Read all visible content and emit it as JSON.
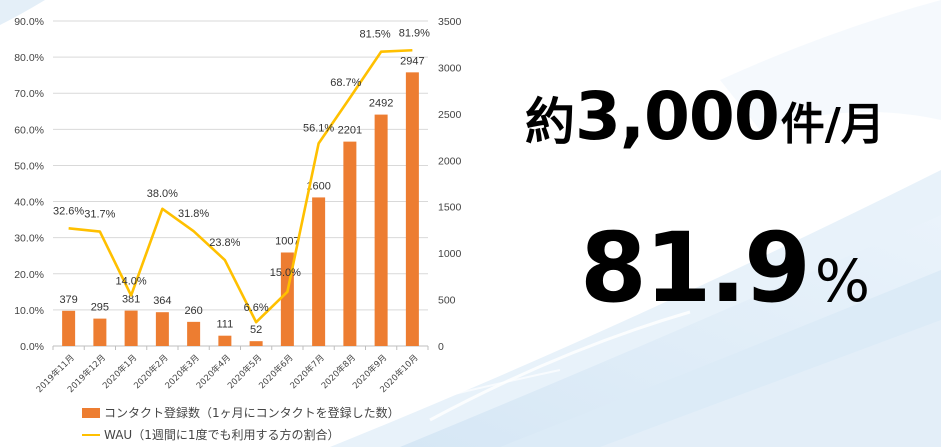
{
  "colors": {
    "bar": "#ED7D31",
    "line": "#FFC000",
    "grid": "#D9D9D9",
    "text": "#444444",
    "background_wave": "#CFE3F3"
  },
  "chart_data": {
    "type": "bar+line",
    "title": "",
    "categories": [
      "2019年11月",
      "2019年12月",
      "2020年1月",
      "2020年2月",
      "2020年3月",
      "2020年4月",
      "2020年5月",
      "2020年6月",
      "2020年7月",
      "2020年8月",
      "2020年9月",
      "2020年10月"
    ],
    "series": [
      {
        "name": "コンタクト登録数（1ヶ月にコンタクトを登録した数）",
        "type": "bar",
        "axis": "right",
        "values": [
          379,
          295,
          381,
          364,
          260,
          111,
          52,
          1007,
          1600,
          2201,
          2492,
          2947
        ],
        "labels": [
          "379",
          "295",
          "381",
          "364",
          "260",
          "111",
          "52",
          "1007",
          "1600",
          "2201",
          "2492",
          "2947"
        ]
      },
      {
        "name": "WAU（1週間に1度でも利用する方の割合）",
        "type": "line",
        "axis": "left",
        "values": [
          32.6,
          31.7,
          14.0,
          38.0,
          31.8,
          23.8,
          6.6,
          15.0,
          56.1,
          68.7,
          81.5,
          81.9
        ],
        "labels": [
          "32.6%",
          "31.7%",
          "14.0%",
          "38.0%",
          "31.8%",
          "23.8%",
          "6.6%",
          "15.0%",
          "56.1%",
          "68.7%",
          "81.5%",
          "81.9%"
        ]
      }
    ],
    "left_axis": {
      "ylim": [
        0,
        90
      ],
      "ticks": [
        "0.0%",
        "10.0%",
        "20.0%",
        "30.0%",
        "40.0%",
        "50.0%",
        "60.0%",
        "70.0%",
        "80.0%",
        "90.0%"
      ]
    },
    "right_axis": {
      "ylim": [
        0,
        3500
      ],
      "ticks": [
        "0",
        "500",
        "1000",
        "1500",
        "2000",
        "2500",
        "3000",
        "3500"
      ]
    },
    "grid": true,
    "legend_position": "bottom",
    "xlabel": "",
    "ylabel": ""
  },
  "legend": {
    "bar_label": "コンタクト登録数（1ヶ月にコンタクトを登録した数）",
    "line_label": "WAU（1週間に1度でも利用する方の割合）"
  },
  "stats": {
    "contacts": {
      "prefix": "約",
      "value": "3,000",
      "unit": "件/月"
    },
    "wau": {
      "value": "81.9",
      "unit": "%"
    }
  }
}
